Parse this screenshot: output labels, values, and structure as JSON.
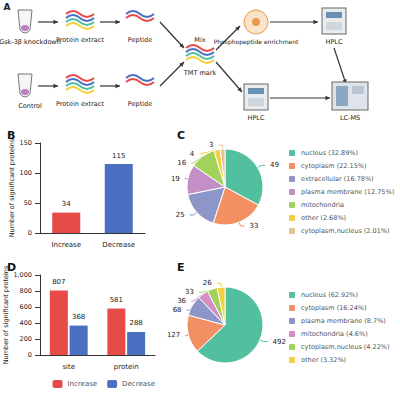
{
  "workflow": {
    "title": "A",
    "groups": [
      {
        "sample": "Gsk-3β knockdown",
        "steps": [
          "Protein extract",
          "Peptide"
        ]
      },
      {
        "sample": "Control",
        "steps": [
          "Protein extract",
          "Peptide"
        ]
      }
    ],
    "mix": "Mix",
    "label": "TMT mark",
    "branches": [
      [
        "Phosphopeptide enrichment",
        "HPLC"
      ],
      [
        "HPLC"
      ]
    ],
    "detector": "LC-MS"
  },
  "chart_data": [
    {
      "type": "bar",
      "title": "B",
      "ylabel": "Number of significant proteins",
      "categories": [
        "Increase",
        "Decrease"
      ],
      "values": [
        34,
        115
      ],
      "colors": [
        "#e64b47",
        "#4b6fc1"
      ],
      "ylim": [
        0,
        150
      ],
      "yticks": [
        0,
        50,
        100,
        150
      ],
      "grid": false,
      "data_labels": true
    },
    {
      "type": "pie",
      "title": "C",
      "categories": [
        "nucleus (32.89%)",
        "cytoplasm (22.15%)",
        "extracellular (16.78%)",
        "plasma membrane (12.75%)",
        "mitochondria",
        "other (2.68%)",
        "cytoplasm,nucleus (2.01%)"
      ],
      "values": [
        49,
        33,
        25,
        19,
        16,
        4,
        3
      ],
      "colors": [
        "#52bfa0",
        "#f39063",
        "#8e95c9",
        "#c48fc6",
        "#a3d25a",
        "#f4d03f",
        "#e5c494"
      ],
      "data_labels": true,
      "legend": "right"
    },
    {
      "type": "bar",
      "title": "D",
      "ylabel": "Number of significant proteins",
      "categories": [
        "site",
        "protein"
      ],
      "series": [
        {
          "name": "Increase",
          "color": "#e64b47",
          "values": [
            807,
            581
          ]
        },
        {
          "name": "Decrease",
          "color": "#4b6fc1",
          "values": [
            368,
            288
          ]
        }
      ],
      "ylim": [
        0,
        1000
      ],
      "yticks": [
        0,
        200,
        400,
        600,
        800,
        1000
      ],
      "grid": false,
      "data_labels": true,
      "legend": "bottom"
    },
    {
      "type": "pie",
      "title": "E",
      "categories": [
        "nucleus (62.92%)",
        "cytoplasm (16.24%)",
        "plasma membrane (8.7%)",
        "mitochondria (4.6%)",
        "cytoplasm,nucleus (4.22%)",
        "other (3.32%)"
      ],
      "values": [
        492,
        127,
        68,
        36,
        33,
        26
      ],
      "colors": [
        "#52bfa0",
        "#f39063",
        "#8e95c9",
        "#d58ec4",
        "#a3d25a",
        "#f4d03f"
      ],
      "data_labels": true,
      "legend": "right"
    }
  ]
}
